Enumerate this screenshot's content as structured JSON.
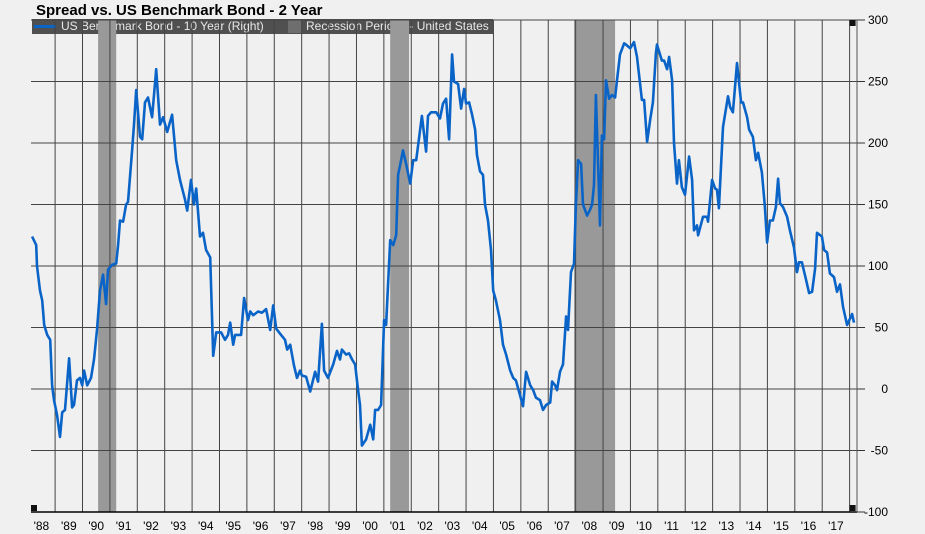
{
  "chart_data": {
    "type": "line",
    "title": "Spread vs. US Benchmark Bond - 2 Year",
    "xlabel": "",
    "ylabel": "",
    "axis_side": "right",
    "ylim": [
      -100,
      300
    ],
    "xlim": [
      1988.12,
      2018.27
    ],
    "yticks": [
      -100,
      -50,
      0,
      50,
      100,
      150,
      200,
      250,
      300
    ],
    "xtick_labels": [
      "'88",
      "'89",
      "'90",
      "'91",
      "'92",
      "'93",
      "'94",
      "'95",
      "'96",
      "'97",
      "'98",
      "'99",
      "'00",
      "'01",
      "'02",
      "'03",
      "'04",
      "'05",
      "'06",
      "'07",
      "'08",
      "'09",
      "'10",
      "'11",
      "'12",
      "'13",
      "'14",
      "'15",
      "'16",
      "'17"
    ],
    "xtick_years": [
      1988,
      1989,
      1990,
      1991,
      1992,
      1993,
      1994,
      1995,
      1996,
      1997,
      1998,
      1999,
      2000,
      2001,
      2002,
      2003,
      2004,
      2005,
      2006,
      2007,
      2008,
      2009,
      2010,
      2011,
      2012,
      2013,
      2014,
      2015,
      2016,
      2017
    ],
    "grid": true,
    "legend_placement": "top-left",
    "series": [
      {
        "name": "US Benchmark Bond - 10 Year (Right)",
        "color": "#0a64c8",
        "points": [
          [
            1988.16,
            124
          ],
          [
            1988.31,
            117
          ],
          [
            1988.34,
            100
          ],
          [
            1988.45,
            80
          ],
          [
            1988.53,
            72
          ],
          [
            1988.6,
            52
          ],
          [
            1988.71,
            44
          ],
          [
            1988.82,
            40
          ],
          [
            1988.89,
            3
          ],
          [
            1988.96,
            -9
          ],
          [
            1989.07,
            -21
          ],
          [
            1989.18,
            -39
          ],
          [
            1989.26,
            -19
          ],
          [
            1989.36,
            -17
          ],
          [
            1989.51,
            25
          ],
          [
            1989.62,
            -15
          ],
          [
            1989.69,
            -13
          ],
          [
            1989.8,
            7
          ],
          [
            1989.91,
            9
          ],
          [
            1989.99,
            3
          ],
          [
            1990.06,
            15
          ],
          [
            1990.17,
            3
          ],
          [
            1990.31,
            9
          ],
          [
            1990.42,
            24
          ],
          [
            1990.53,
            48
          ],
          [
            1990.64,
            80
          ],
          [
            1990.75,
            93
          ],
          [
            1990.86,
            69
          ],
          [
            1990.93,
            97
          ],
          [
            1991.08,
            101
          ],
          [
            1991.23,
            102
          ],
          [
            1991.3,
            117
          ],
          [
            1991.37,
            137
          ],
          [
            1991.48,
            136
          ],
          [
            1991.59,
            150
          ],
          [
            1991.66,
            152
          ],
          [
            1991.81,
            194
          ],
          [
            1991.88,
            215
          ],
          [
            1991.96,
            243
          ],
          [
            1992.1,
            205
          ],
          [
            1992.18,
            203
          ],
          [
            1992.28,
            233
          ],
          [
            1992.39,
            237
          ],
          [
            1992.54,
            221
          ],
          [
            1992.69,
            260
          ],
          [
            1992.83,
            215
          ],
          [
            1992.94,
            221
          ],
          [
            1993.09,
            209
          ],
          [
            1993.27,
            223
          ],
          [
            1993.42,
            186
          ],
          [
            1993.56,
            170
          ],
          [
            1993.74,
            154
          ],
          [
            1993.82,
            145
          ],
          [
            1993.96,
            170
          ],
          [
            1994.07,
            150
          ],
          [
            1994.15,
            163
          ],
          [
            1994.29,
            124
          ],
          [
            1994.4,
            127
          ],
          [
            1994.51,
            113
          ],
          [
            1994.66,
            107
          ],
          [
            1994.77,
            27
          ],
          [
            1994.88,
            46
          ],
          [
            1995.06,
            46
          ],
          [
            1995.2,
            40
          ],
          [
            1995.31,
            44
          ],
          [
            1995.39,
            54
          ],
          [
            1995.5,
            36
          ],
          [
            1995.57,
            44
          ],
          [
            1995.68,
            44
          ],
          [
            1995.79,
            44
          ],
          [
            1995.9,
            74
          ],
          [
            1996.04,
            56
          ],
          [
            1996.12,
            63
          ],
          [
            1996.23,
            60
          ],
          [
            1996.41,
            63
          ],
          [
            1996.55,
            62
          ],
          [
            1996.7,
            65
          ],
          [
            1996.85,
            48
          ],
          [
            1996.96,
            68
          ],
          [
            1997.07,
            49
          ],
          [
            1997.21,
            45
          ],
          [
            1997.39,
            40
          ],
          [
            1997.47,
            32
          ],
          [
            1997.58,
            36
          ],
          [
            1997.72,
            19
          ],
          [
            1997.83,
            9
          ],
          [
            1997.94,
            15
          ],
          [
            1998.01,
            11
          ],
          [
            1998.16,
            10
          ],
          [
            1998.31,
            -2
          ],
          [
            1998.49,
            14
          ],
          [
            1998.6,
            6
          ],
          [
            1998.74,
            53
          ],
          [
            1998.82,
            15
          ],
          [
            1998.96,
            9
          ],
          [
            1999.15,
            20
          ],
          [
            1999.29,
            31
          ],
          [
            1999.4,
            24
          ],
          [
            1999.47,
            32
          ],
          [
            1999.62,
            28
          ],
          [
            1999.73,
            29
          ],
          [
            1999.84,
            24
          ],
          [
            1999.95,
            20
          ],
          [
            2000.06,
            -1
          ],
          [
            2000.13,
            -13
          ],
          [
            2000.2,
            -46
          ],
          [
            2000.35,
            -41
          ],
          [
            2000.5,
            -29
          ],
          [
            2000.61,
            -41
          ],
          [
            2000.68,
            -17
          ],
          [
            2000.79,
            -17
          ],
          [
            2000.9,
            -13
          ],
          [
            2001.01,
            56
          ],
          [
            2001.08,
            52
          ],
          [
            2001.23,
            121
          ],
          [
            2001.34,
            117
          ],
          [
            2001.45,
            125
          ],
          [
            2001.52,
            174
          ],
          [
            2001.63,
            186
          ],
          [
            2001.7,
            194
          ],
          [
            2001.81,
            183
          ],
          [
            2001.96,
            167
          ],
          [
            2002.07,
            186
          ],
          [
            2002.18,
            186
          ],
          [
            2002.25,
            198
          ],
          [
            2002.39,
            222
          ],
          [
            2002.54,
            193
          ],
          [
            2002.61,
            222
          ],
          [
            2002.72,
            225
          ],
          [
            2002.91,
            225
          ],
          [
            2003.05,
            220
          ],
          [
            2003.16,
            232
          ],
          [
            2003.27,
            236
          ],
          [
            2003.38,
            203
          ],
          [
            2003.49,
            272
          ],
          [
            2003.56,
            250
          ],
          [
            2003.71,
            248
          ],
          [
            2003.82,
            228
          ],
          [
            2003.93,
            244
          ],
          [
            2004.0,
            232
          ],
          [
            2004.11,
            233
          ],
          [
            2004.22,
            223
          ],
          [
            2004.33,
            211
          ],
          [
            2004.4,
            190
          ],
          [
            2004.51,
            177
          ],
          [
            2004.62,
            174
          ],
          [
            2004.69,
            150
          ],
          [
            2004.8,
            137
          ],
          [
            2004.91,
            113
          ],
          [
            2004.99,
            80
          ],
          [
            2005.09,
            72
          ],
          [
            2005.24,
            56
          ],
          [
            2005.35,
            36
          ],
          [
            2005.46,
            28
          ],
          [
            2005.61,
            15
          ],
          [
            2005.72,
            9
          ],
          [
            2005.82,
            7
          ],
          [
            2005.97,
            -5
          ],
          [
            2006.08,
            -14
          ],
          [
            2006.19,
            14
          ],
          [
            2006.34,
            3
          ],
          [
            2006.45,
            -1
          ],
          [
            2006.55,
            -7
          ],
          [
            2006.7,
            -9
          ],
          [
            2006.81,
            -17
          ],
          [
            2006.92,
            -13
          ],
          [
            2007.07,
            -11
          ],
          [
            2007.14,
            6
          ],
          [
            2007.25,
            3
          ],
          [
            2007.32,
            -1
          ],
          [
            2007.43,
            14
          ],
          [
            2007.54,
            20
          ],
          [
            2007.65,
            59
          ],
          [
            2007.72,
            48
          ],
          [
            2007.83,
            95
          ],
          [
            2007.94,
            102
          ],
          [
            2008.01,
            150
          ],
          [
            2008.09,
            186
          ],
          [
            2008.2,
            183
          ],
          [
            2008.27,
            150
          ],
          [
            2008.42,
            141
          ],
          [
            2008.53,
            146
          ],
          [
            2008.6,
            150
          ],
          [
            2008.67,
            166
          ],
          [
            2008.74,
            239
          ],
          [
            2008.89,
            133
          ],
          [
            2008.96,
            206
          ],
          [
            2009.04,
            203
          ],
          [
            2009.11,
            251
          ],
          [
            2009.22,
            236
          ],
          [
            2009.33,
            239
          ],
          [
            2009.44,
            237
          ],
          [
            2009.51,
            251
          ],
          [
            2009.62,
            272
          ],
          [
            2009.77,
            281
          ],
          [
            2009.84,
            280
          ],
          [
            2009.99,
            277
          ],
          [
            2010.13,
            282
          ],
          [
            2010.24,
            270
          ],
          [
            2010.42,
            235
          ],
          [
            2010.5,
            235
          ],
          [
            2010.61,
            201
          ],
          [
            2010.72,
            219
          ],
          [
            2010.82,
            233
          ],
          [
            2010.93,
            273
          ],
          [
            2010.97,
            280
          ],
          [
            2011.15,
            267
          ],
          [
            2011.23,
            267
          ],
          [
            2011.34,
            260
          ],
          [
            2011.41,
            270
          ],
          [
            2011.52,
            251
          ],
          [
            2011.59,
            200
          ],
          [
            2011.7,
            167
          ],
          [
            2011.77,
            186
          ],
          [
            2011.88,
            164
          ],
          [
            2011.99,
            158
          ],
          [
            2012.14,
            189
          ],
          [
            2012.25,
            170
          ],
          [
            2012.32,
            129
          ],
          [
            2012.43,
            133
          ],
          [
            2012.47,
            125
          ],
          [
            2012.65,
            140
          ],
          [
            2012.8,
            140
          ],
          [
            2012.83,
            136
          ],
          [
            2012.98,
            170
          ],
          [
            2013.09,
            163
          ],
          [
            2013.16,
            162
          ],
          [
            2013.23,
            147
          ],
          [
            2013.38,
            213
          ],
          [
            2013.56,
            238
          ],
          [
            2013.64,
            229
          ],
          [
            2013.74,
            225
          ],
          [
            2013.89,
            265
          ],
          [
            2014.04,
            233
          ],
          [
            2014.11,
            233
          ],
          [
            2014.26,
            221
          ],
          [
            2014.33,
            211
          ],
          [
            2014.47,
            205
          ],
          [
            2014.58,
            186
          ],
          [
            2014.66,
            192
          ],
          [
            2014.8,
            176
          ],
          [
            2014.91,
            148
          ],
          [
            2014.99,
            119
          ],
          [
            2015.09,
            137
          ],
          [
            2015.2,
            137
          ],
          [
            2015.31,
            148
          ],
          [
            2015.39,
            171
          ],
          [
            2015.46,
            151
          ],
          [
            2015.57,
            148
          ],
          [
            2015.72,
            140
          ],
          [
            2015.82,
            129
          ],
          [
            2015.97,
            115
          ],
          [
            2016.08,
            95
          ],
          [
            2016.15,
            103
          ],
          [
            2016.26,
            103
          ],
          [
            2016.41,
            89
          ],
          [
            2016.52,
            78
          ],
          [
            2016.63,
            79
          ],
          [
            2016.74,
            98
          ],
          [
            2016.81,
            127
          ],
          [
            2016.99,
            124
          ],
          [
            2017.07,
            113
          ],
          [
            2017.18,
            111
          ],
          [
            2017.28,
            94
          ],
          [
            2017.43,
            91
          ],
          [
            2017.54,
            79
          ],
          [
            2017.65,
            85
          ],
          [
            2017.76,
            67
          ],
          [
            2017.91,
            52
          ],
          [
            2018.09,
            61
          ],
          [
            2018.16,
            54
          ]
        ]
      }
    ],
    "recessions": {
      "name": "Recession Periods - United States",
      "color": "#999999",
      "periods": [
        [
          1990.57,
          1991.23
        ],
        [
          2001.23,
          2001.92
        ],
        [
          2007.94,
          2009.44
        ]
      ]
    }
  },
  "colors": {
    "background": "#f0f0f0",
    "grid": "#444444",
    "legend_bg": "#505050"
  }
}
